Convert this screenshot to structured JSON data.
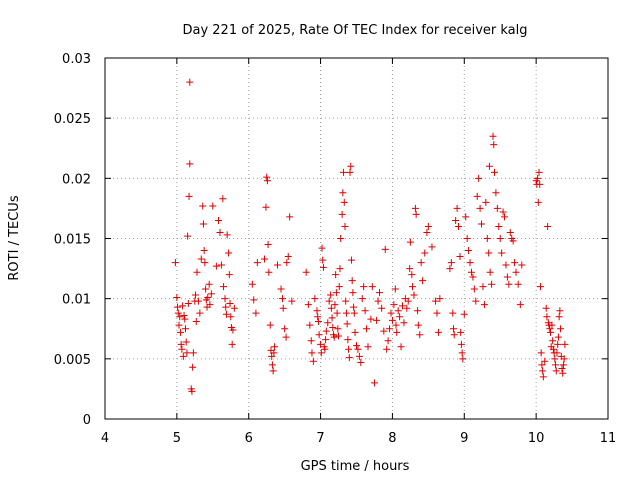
{
  "chart_data": {
    "type": "scatter",
    "title": "Day 221 of 2025, Rate Of TEC Index for receiver kalg",
    "xlabel": "GPS time / hours",
    "ylabel": "ROTI / TECUs",
    "xlim": [
      4,
      11
    ],
    "ylim": [
      0,
      0.03
    ],
    "xticks": [
      4,
      5,
      6,
      7,
      8,
      9,
      10,
      11
    ],
    "yticks": [
      0,
      0.005,
      0.01,
      0.015,
      0.02,
      0.025,
      0.03
    ],
    "xtick_labels": [
      "4",
      "5",
      "6",
      "7",
      "8",
      "9",
      "10",
      "11"
    ],
    "ytick_labels": [
      "0",
      "0.005",
      "0.01",
      "0.015",
      "0.02",
      "0.025",
      "0.03"
    ],
    "grid": true,
    "marker": "+",
    "series": [
      {
        "name": "ROTI",
        "color": "#e00000",
        "points": [
          [
            4.98,
            0.013
          ],
          [
            5.0,
            0.0101
          ],
          [
            5.01,
            0.0093
          ],
          [
            5.02,
            0.0088
          ],
          [
            5.03,
            0.0078
          ],
          [
            5.04,
            0.0085
          ],
          [
            5.05,
            0.0072
          ],
          [
            5.06,
            0.0062
          ],
          [
            5.07,
            0.0058
          ],
          [
            5.08,
            0.0094
          ],
          [
            5.09,
            0.0052
          ],
          [
            5.1,
            0.0086
          ],
          [
            5.11,
            0.0083
          ],
          [
            5.12,
            0.0075
          ],
          [
            5.13,
            0.0064
          ],
          [
            5.14,
            0.0055
          ],
          [
            5.15,
            0.0152
          ],
          [
            5.16,
            0.0096
          ],
          [
            5.17,
            0.0185
          ],
          [
            5.18,
            0.0212
          ],
          [
            5.18,
            0.028
          ],
          [
            5.2,
            0.0025
          ],
          [
            5.21,
            0.0023
          ],
          [
            5.22,
            0.0043
          ],
          [
            5.23,
            0.0055
          ],
          [
            5.25,
            0.0098
          ],
          [
            5.26,
            0.0103
          ],
          [
            5.27,
            0.0081
          ],
          [
            5.28,
            0.0122
          ],
          [
            5.3,
            0.0098
          ],
          [
            5.32,
            0.0088
          ],
          [
            5.34,
            0.0133
          ],
          [
            5.36,
            0.0177
          ],
          [
            5.37,
            0.0162
          ],
          [
            5.38,
            0.014
          ],
          [
            5.39,
            0.013
          ],
          [
            5.4,
            0.0108
          ],
          [
            5.41,
            0.0099
          ],
          [
            5.42,
            0.0093
          ],
          [
            5.43,
            0.0101
          ],
          [
            5.45,
            0.0112
          ],
          [
            5.46,
            0.0095
          ],
          [
            5.48,
            0.0104
          ],
          [
            5.5,
            0.0177
          ],
          [
            5.55,
            0.0127
          ],
          [
            5.58,
            0.0165
          ],
          [
            5.6,
            0.0155
          ],
          [
            5.62,
            0.0128
          ],
          [
            5.64,
            0.0183
          ],
          [
            5.65,
            0.011
          ],
          [
            5.67,
            0.01
          ],
          [
            5.68,
            0.0093
          ],
          [
            5.69,
            0.0087
          ],
          [
            5.7,
            0.0153
          ],
          [
            5.72,
            0.0138
          ],
          [
            5.73,
            0.012
          ],
          [
            5.74,
            0.0096
          ],
          [
            5.75,
            0.0085
          ],
          [
            5.76,
            0.0076
          ],
          [
            5.77,
            0.0062
          ],
          [
            5.78,
            0.0074
          ],
          [
            5.8,
            0.0092
          ],
          [
            6.05,
            0.0112
          ],
          [
            6.07,
            0.0099
          ],
          [
            6.1,
            0.0088
          ],
          [
            6.12,
            0.013
          ],
          [
            6.22,
            0.0133
          ],
          [
            6.24,
            0.0176
          ],
          [
            6.25,
            0.0201
          ],
          [
            6.26,
            0.0198
          ],
          [
            6.27,
            0.0145
          ],
          [
            6.28,
            0.0122
          ],
          [
            6.3,
            0.0078
          ],
          [
            6.31,
            0.0057
          ],
          [
            6.32,
            0.0052
          ],
          [
            6.33,
            0.0045
          ],
          [
            6.34,
            0.004
          ],
          [
            6.35,
            0.0055
          ],
          [
            6.36,
            0.006
          ],
          [
            6.4,
            0.0128
          ],
          [
            6.45,
            0.0108
          ],
          [
            6.47,
            0.01
          ],
          [
            6.48,
            0.0092
          ],
          [
            6.5,
            0.0075
          ],
          [
            6.52,
            0.0068
          ],
          [
            6.53,
            0.013
          ],
          [
            6.55,
            0.0135
          ],
          [
            6.57,
            0.0168
          ],
          [
            6.6,
            0.0098
          ],
          [
            6.8,
            0.0122
          ],
          [
            6.83,
            0.0095
          ],
          [
            6.85,
            0.0078
          ],
          [
            6.87,
            0.0065
          ],
          [
            6.88,
            0.0055
          ],
          [
            6.9,
            0.0048
          ],
          [
            6.92,
            0.01
          ],
          [
            6.95,
            0.009
          ],
          [
            6.96,
            0.0085
          ],
          [
            6.97,
            0.0081
          ],
          [
            6.98,
            0.007
          ],
          [
            7.0,
            0.0062
          ],
          [
            7.01,
            0.0055
          ],
          [
            7.02,
            0.0142
          ],
          [
            7.03,
            0.0132
          ],
          [
            7.04,
            0.0126
          ],
          [
            7.05,
            0.006
          ],
          [
            7.06,
            0.0058
          ],
          [
            7.07,
            0.0066
          ],
          [
            7.08,
            0.0073
          ],
          [
            7.1,
            0.008
          ],
          [
            7.12,
            0.0098
          ],
          [
            7.14,
            0.0103
          ],
          [
            7.15,
            0.0092
          ],
          [
            7.16,
            0.0084
          ],
          [
            7.17,
            0.0076
          ],
          [
            7.18,
            0.007
          ],
          [
            7.19,
            0.0068
          ],
          [
            7.2,
            0.0095
          ],
          [
            7.21,
            0.012
          ],
          [
            7.22,
            0.0105
          ],
          [
            7.23,
            0.0088
          ],
          [
            7.24,
            0.0075
          ],
          [
            7.25,
            0.0069
          ],
          [
            7.26,
            0.011
          ],
          [
            7.27,
            0.0125
          ],
          [
            7.28,
            0.015
          ],
          [
            7.3,
            0.017
          ],
          [
            7.31,
            0.0188
          ],
          [
            7.32,
            0.0205
          ],
          [
            7.33,
            0.018
          ],
          [
            7.34,
            0.016
          ],
          [
            7.35,
            0.0098
          ],
          [
            7.36,
            0.0088
          ],
          [
            7.37,
            0.0079
          ],
          [
            7.38,
            0.0066
          ],
          [
            7.39,
            0.0058
          ],
          [
            7.4,
            0.0051
          ],
          [
            7.41,
            0.0205
          ],
          [
            7.42,
            0.021
          ],
          [
            7.43,
            0.0132
          ],
          [
            7.44,
            0.0115
          ],
          [
            7.45,
            0.0105
          ],
          [
            7.46,
            0.0093
          ],
          [
            7.47,
            0.0088
          ],
          [
            7.48,
            0.0072
          ],
          [
            7.5,
            0.0061
          ],
          [
            7.52,
            0.0058
          ],
          [
            7.54,
            0.0052
          ],
          [
            7.56,
            0.0047
          ],
          [
            7.58,
            0.01
          ],
          [
            7.6,
            0.011
          ],
          [
            7.62,
            0.009
          ],
          [
            7.64,
            0.0075
          ],
          [
            7.66,
            0.006
          ],
          [
            7.7,
            0.0083
          ],
          [
            7.72,
            0.011
          ],
          [
            7.75,
            0.003
          ],
          [
            7.78,
            0.0082
          ],
          [
            7.8,
            0.0098
          ],
          [
            7.82,
            0.0105
          ],
          [
            7.85,
            0.0092
          ],
          [
            7.88,
            0.0073
          ],
          [
            7.9,
            0.0141
          ],
          [
            7.92,
            0.0058
          ],
          [
            7.94,
            0.0065
          ],
          [
            7.96,
            0.0075
          ],
          [
            7.98,
            0.0088
          ],
          [
            8.0,
            0.0082
          ],
          [
            8.02,
            0.0095
          ],
          [
            8.04,
            0.0108
          ],
          [
            8.05,
            0.0078
          ],
          [
            8.06,
            0.0072
          ],
          [
            8.08,
            0.009
          ],
          [
            8.1,
            0.0085
          ],
          [
            8.12,
            0.006
          ],
          [
            8.14,
            0.0094
          ],
          [
            8.16,
            0.008
          ],
          [
            8.18,
            0.01
          ],
          [
            8.2,
            0.0092
          ],
          [
            8.22,
            0.0098
          ],
          [
            8.24,
            0.0125
          ],
          [
            8.25,
            0.0147
          ],
          [
            8.27,
            0.012
          ],
          [
            8.28,
            0.011
          ],
          [
            8.3,
            0.0103
          ],
          [
            8.32,
            0.0175
          ],
          [
            8.33,
            0.017
          ],
          [
            8.35,
            0.009
          ],
          [
            8.36,
            0.0078
          ],
          [
            8.38,
            0.007
          ],
          [
            8.4,
            0.013
          ],
          [
            8.42,
            0.0115
          ],
          [
            8.45,
            0.0138
          ],
          [
            8.48,
            0.0155
          ],
          [
            8.5,
            0.016
          ],
          [
            8.55,
            0.0143
          ],
          [
            8.6,
            0.0098
          ],
          [
            8.62,
            0.0088
          ],
          [
            8.64,
            0.0072
          ],
          [
            8.66,
            0.01
          ],
          [
            8.8,
            0.0125
          ],
          [
            8.82,
            0.013
          ],
          [
            8.84,
            0.0088
          ],
          [
            8.85,
            0.0075
          ],
          [
            8.86,
            0.007
          ],
          [
            8.88,
            0.0165
          ],
          [
            8.9,
            0.0175
          ],
          [
            8.92,
            0.016
          ],
          [
            8.94,
            0.0135
          ],
          [
            8.95,
            0.0072
          ],
          [
            8.96,
            0.0062
          ],
          [
            8.97,
            0.0055
          ],
          [
            8.98,
            0.005
          ],
          [
            9.0,
            0.0087
          ],
          [
            9.02,
            0.0168
          ],
          [
            9.04,
            0.015
          ],
          [
            9.06,
            0.014
          ],
          [
            9.08,
            0.013
          ],
          [
            9.1,
            0.0122
          ],
          [
            9.12,
            0.0118
          ],
          [
            9.14,
            0.0108
          ],
          [
            9.16,
            0.0098
          ],
          [
            9.18,
            0.0185
          ],
          [
            9.2,
            0.02
          ],
          [
            9.22,
            0.0175
          ],
          [
            9.24,
            0.0162
          ],
          [
            9.26,
            0.011
          ],
          [
            9.28,
            0.0095
          ],
          [
            9.3,
            0.018
          ],
          [
            9.32,
            0.015
          ],
          [
            9.34,
            0.0138
          ],
          [
            9.35,
            0.021
          ],
          [
            9.36,
            0.0122
          ],
          [
            9.38,
            0.0112
          ],
          [
            9.4,
            0.0235
          ],
          [
            9.41,
            0.0228
          ],
          [
            9.42,
            0.0205
          ],
          [
            9.44,
            0.0188
          ],
          [
            9.46,
            0.0175
          ],
          [
            9.48,
            0.016
          ],
          [
            9.5,
            0.015
          ],
          [
            9.52,
            0.0138
          ],
          [
            9.54,
            0.0172
          ],
          [
            9.56,
            0.0168
          ],
          [
            9.58,
            0.0128
          ],
          [
            9.6,
            0.0118
          ],
          [
            9.62,
            0.0112
          ],
          [
            9.64,
            0.0155
          ],
          [
            9.66,
            0.015
          ],
          [
            9.68,
            0.0148
          ],
          [
            9.7,
            0.013
          ],
          [
            9.72,
            0.0122
          ],
          [
            9.75,
            0.0112
          ],
          [
            9.78,
            0.0095
          ],
          [
            9.8,
            0.0128
          ],
          [
            10.0,
            0.0198
          ],
          [
            10.01,
            0.0195
          ],
          [
            10.02,
            0.02
          ],
          [
            10.03,
            0.018
          ],
          [
            10.04,
            0.0205
          ],
          [
            10.05,
            0.0195
          ],
          [
            10.06,
            0.011
          ],
          [
            10.07,
            0.0055
          ],
          [
            10.08,
            0.0045
          ],
          [
            10.09,
            0.004
          ],
          [
            10.1,
            0.0035
          ],
          [
            10.12,
            0.0048
          ],
          [
            10.14,
            0.0092
          ],
          [
            10.15,
            0.0085
          ],
          [
            10.16,
            0.016
          ],
          [
            10.17,
            0.008
          ],
          [
            10.18,
            0.0078
          ],
          [
            10.19,
            0.0075
          ],
          [
            10.2,
            0.0072
          ],
          [
            10.21,
            0.006
          ],
          [
            10.22,
            0.0078
          ],
          [
            10.23,
            0.0065
          ],
          [
            10.24,
            0.0058
          ],
          [
            10.25,
            0.0055
          ],
          [
            10.26,
            0.005
          ],
          [
            10.27,
            0.0045
          ],
          [
            10.28,
            0.004
          ],
          [
            10.29,
            0.0055
          ],
          [
            10.3,
            0.0062
          ],
          [
            10.31,
            0.0068
          ],
          [
            10.32,
            0.0085
          ],
          [
            10.33,
            0.009
          ],
          [
            10.34,
            0.0075
          ],
          [
            10.35,
            0.0052
          ],
          [
            10.36,
            0.0042
          ],
          [
            10.37,
            0.0038
          ],
          [
            10.38,
            0.0045
          ],
          [
            10.39,
            0.005
          ],
          [
            10.4,
            0.0062
          ]
        ]
      }
    ]
  }
}
